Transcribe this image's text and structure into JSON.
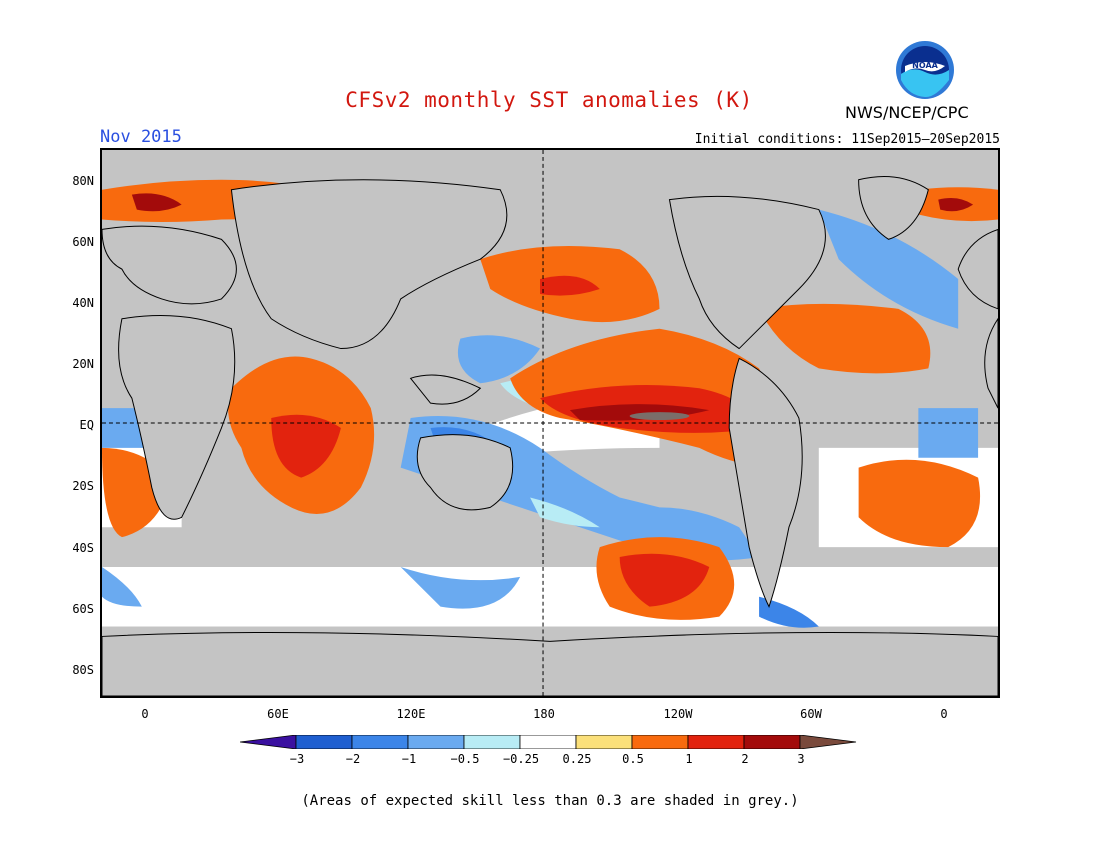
{
  "title": "CFSv2 monthly SST anomalies (K)",
  "month": "Nov 2015",
  "agency": "NWS/NCEP/CPC",
  "logo_text": "NOAA",
  "initial_conditions": "Initial conditions: 11Sep2015–20Sep2015",
  "lat_labels": [
    "80N",
    "60N",
    "40N",
    "20N",
    "EQ",
    "20S",
    "40S",
    "60S",
    "80S"
  ],
  "lon_labels": [
    "0",
    "60E",
    "120E",
    "180",
    "120W",
    "60W",
    "0"
  ],
  "colorbar": {
    "labels": [
      "−3",
      "−2",
      "−1",
      "−0.5",
      "−0.25",
      "0.25",
      "0.5",
      "1",
      "2",
      "3"
    ],
    "colors": [
      "#3a10a0",
      "#1f5fd0",
      "#3c85e8",
      "#6aaaf0",
      "#b8ecf5",
      "#ffffff",
      "#fbe07a",
      "#f86a0e",
      "#e2230e",
      "#a30b0b",
      "#7a4a3c"
    ]
  },
  "footnote": "(Areas of expected skill less than 0.3 are shaded in grey.)"
}
